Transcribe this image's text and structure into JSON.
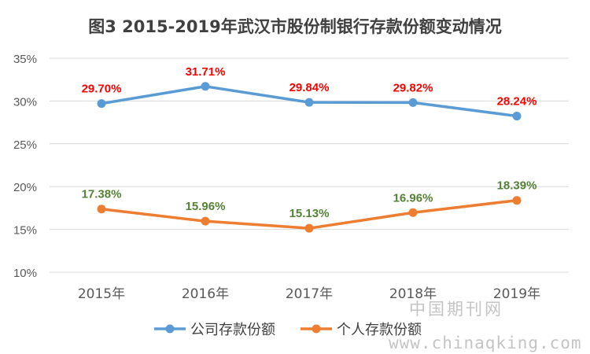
{
  "colors": {
    "series_company": "#5b9bd5",
    "series_personal": "#ed7d31",
    "label_company": "#ff0000",
    "label_personal": "#548235",
    "grid": "#d9d9d9",
    "axis_text": "#595959",
    "title": "#404040"
  },
  "watermark": {
    "cn": "中国期刊网",
    "url": "www.chinaqking.com"
  },
  "chart_data": {
    "type": "line",
    "title": "图3 2015-2019年武汉市股份制银行存款份额变动情况",
    "categories": [
      "2015年",
      "2016年",
      "2017年",
      "2018年",
      "2019年"
    ],
    "ylim": [
      10,
      35
    ],
    "yticks": [
      10,
      15,
      20,
      25,
      30,
      35
    ],
    "ytick_labels": [
      "10%",
      "15%",
      "20%",
      "25%",
      "30%",
      "35%"
    ],
    "grid": true,
    "legend": "bottom",
    "series": [
      {
        "name": "公司存款份额",
        "values": [
          29.7,
          31.71,
          29.84,
          29.82,
          28.24
        ],
        "labels": [
          "29.70%",
          "31.71%",
          "29.84%",
          "29.82%",
          "28.24%"
        ]
      },
      {
        "name": "个人存款份额",
        "values": [
          17.38,
          15.96,
          15.13,
          16.96,
          18.39
        ],
        "labels": [
          "17.38%",
          "15.96%",
          "15.13%",
          "16.96%",
          "18.39%"
        ]
      }
    ]
  }
}
